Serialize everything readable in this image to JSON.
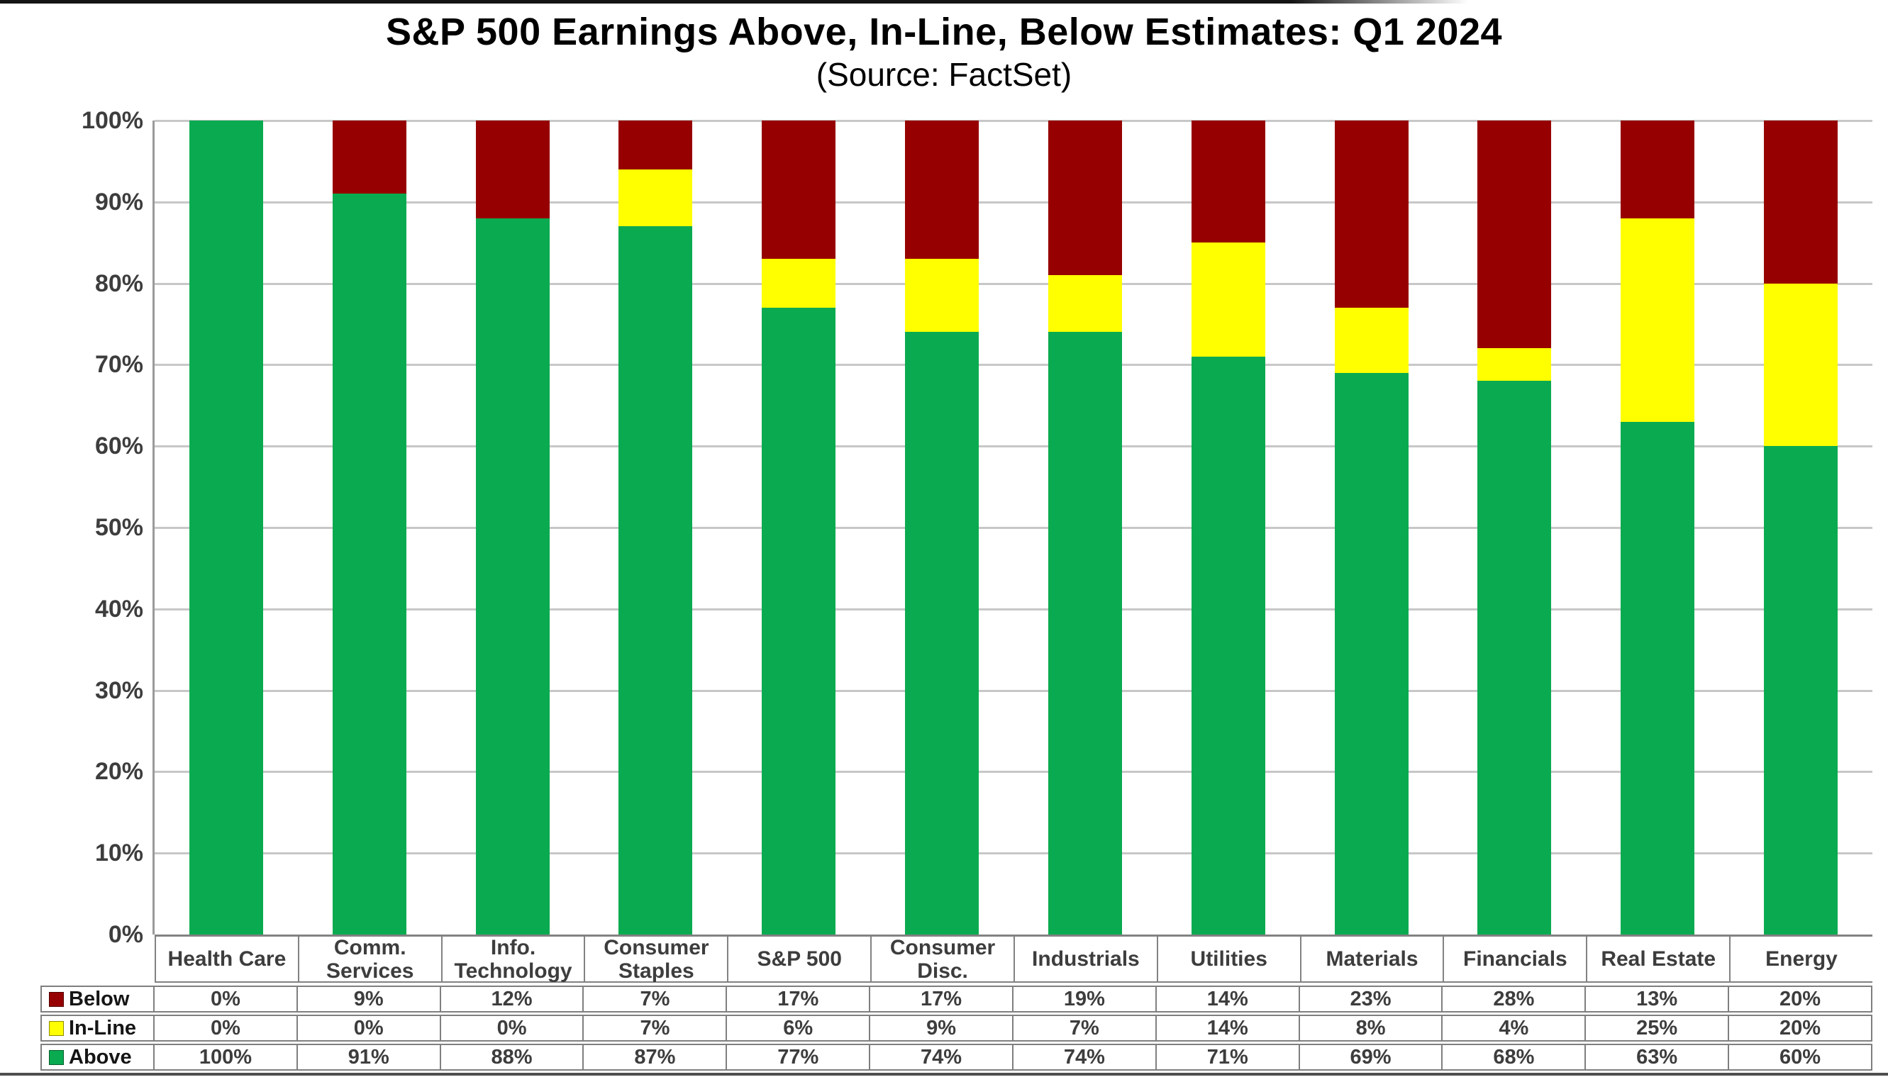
{
  "title": "S&P 500 Earnings Above, In-Line, Below Estimates: Q1 2024",
  "subtitle": "(Source: FactSet)",
  "colors": {
    "above_green": "#0aab50",
    "inline_yellow": "#ffff00",
    "below_darkred": "#970000",
    "gridline": "#c7c7c7",
    "axis": "#9a9a9a",
    "table_border": "#7f7f7f",
    "label_text": "#3d3d3d"
  },
  "chart_data": {
    "type": "bar",
    "stacked": true,
    "title": "S&P 500 Earnings Above, In-Line, Below Estimates: Q1 2024",
    "subtitle": "(Source: FactSet)",
    "xlabel": "",
    "ylabel": "",
    "ylim": [
      0,
      100
    ],
    "grid": true,
    "legend_position": "table-left",
    "value_suffix": "%",
    "yticks": [
      "0%",
      "10%",
      "20%",
      "30%",
      "40%",
      "50%",
      "60%",
      "70%",
      "80%",
      "90%",
      "100%"
    ],
    "categories": [
      "Health Care",
      "Comm. Services",
      "Info. Technology",
      "Consumer Staples",
      "S&P 500",
      "Consumer Disc.",
      "Industrials",
      "Utilities",
      "Materials",
      "Financials",
      "Real Estate",
      "Energy"
    ],
    "series": [
      {
        "name": "Below",
        "color": "#970000",
        "values": [
          0,
          9,
          12,
          7,
          17,
          17,
          19,
          14,
          23,
          28,
          13,
          20
        ]
      },
      {
        "name": "In-Line",
        "color": "#ffff00",
        "values": [
          0,
          0,
          0,
          7,
          6,
          9,
          7,
          14,
          8,
          4,
          25,
          20
        ]
      },
      {
        "name": "Above",
        "color": "#0aab50",
        "values": [
          100,
          91,
          88,
          87,
          77,
          74,
          74,
          71,
          69,
          68,
          63,
          60
        ]
      }
    ]
  }
}
